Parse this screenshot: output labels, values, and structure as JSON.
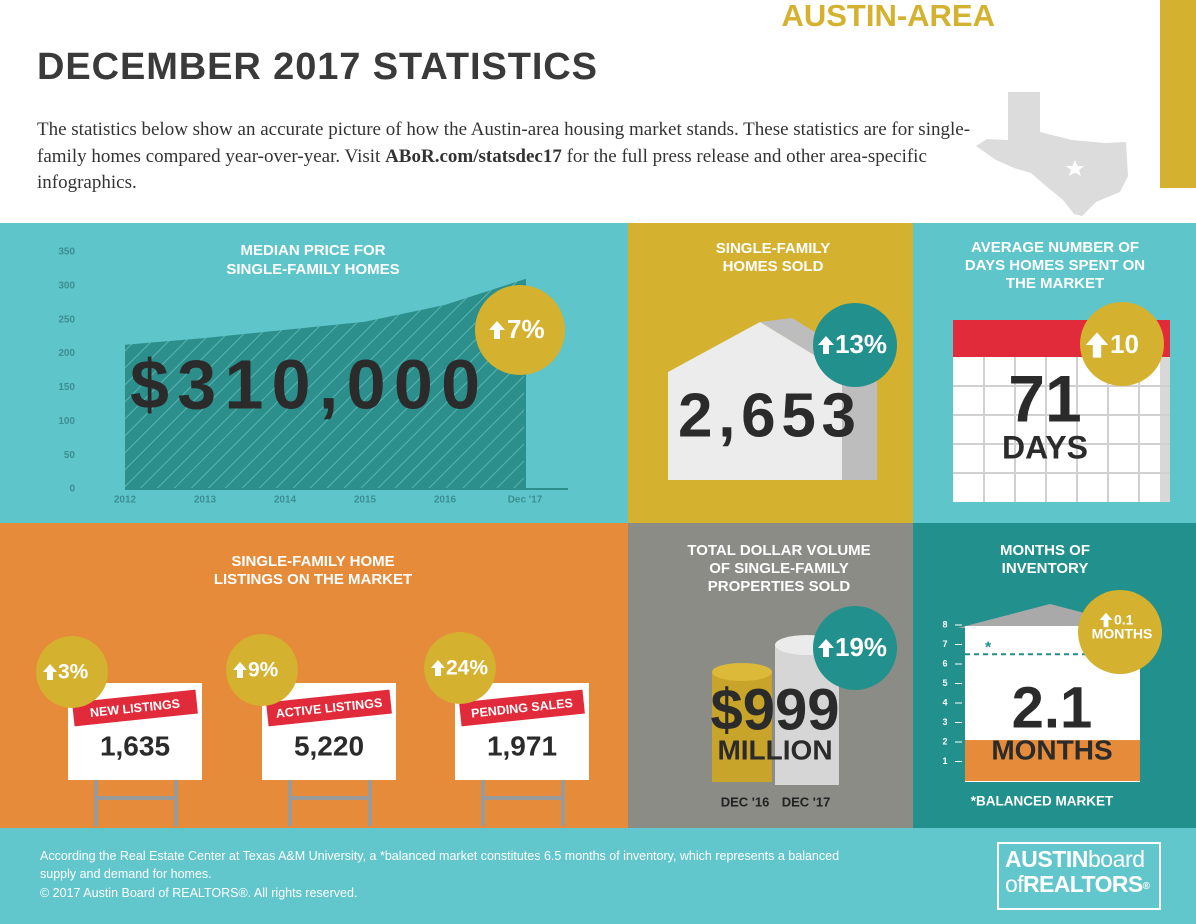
{
  "header": {
    "region": "AUSTIN-AREA",
    "title": "DECEMBER 2017 STATISTICS",
    "description": [
      "The statistics below show an accurate picture of how the Austin-area housing market stands. These statistics are for single-family homes compared year-over-year. Visit ",
      "ABoR.com/statsdec17",
      " for the full press release and other area-specific infographics."
    ]
  },
  "median_price": {
    "title": [
      "MEDIAN PRICE FOR",
      "SINGLE-FAMILY HOMES"
    ],
    "value": "$310,000",
    "change": "7%",
    "chart": {
      "type": "area",
      "categories": [
        "2012",
        "2013",
        "2014",
        "2015",
        "2016",
        "Dec '17"
      ],
      "values": [
        213,
        223,
        235,
        247,
        272,
        310
      ],
      "ylim": [
        0,
        350
      ],
      "yticks": [
        0,
        50,
        100,
        150,
        200,
        250,
        300,
        350
      ]
    }
  },
  "homes_sold": {
    "title": [
      "SINGLE-FAMILY",
      "HOMES SOLD"
    ],
    "value": "2,653",
    "change": "13%"
  },
  "days_on_market": {
    "title": [
      "AVERAGE NUMBER OF",
      "DAYS HOMES SPENT ON",
      "THE MARKET"
    ],
    "value": "71",
    "unit": "DAYS",
    "change": "10"
  },
  "listings": {
    "title": [
      "SINGLE-FAMILY HOME",
      "LISTINGS ON THE MARKET"
    ],
    "items": [
      {
        "label": "NEW LISTINGS",
        "value": "1,635",
        "change": "3%"
      },
      {
        "label": "ACTIVE LISTINGS",
        "value": "5,220",
        "change": "9%"
      },
      {
        "label": "PENDING SALES",
        "value": "1,971",
        "change": "24%"
      }
    ]
  },
  "dollar_volume": {
    "title": [
      "TOTAL DOLLAR VOLUME",
      "OF SINGLE-FAMILY",
      "PROPERTIES SOLD"
    ],
    "value": "$999",
    "unit": "MILLION",
    "change": "19%",
    "bars": [
      "DEC '16",
      "DEC '17"
    ]
  },
  "inventory": {
    "title": [
      "MONTHS OF",
      "INVENTORY"
    ],
    "change": "0.1",
    "change_unit": "MONTHS",
    "unit": "MONTHS",
    "marker": "*",
    "note": "*BALANCED MARKET",
    "chart": {
      "value": 2.1,
      "balanced": 6.5,
      "ylim": [
        0,
        8
      ],
      "yticks": [
        1,
        2,
        3,
        4,
        5,
        6,
        7,
        8
      ]
    }
  },
  "footer": {
    "note": "According the Real Estate Center at Texas A&M University, a *balanced market constitutes 6.5 months of inventory, which represents a balanced supply and demand for homes.",
    "copyright": "© 2017  Austin Board of REALTORS®. All rights reserved."
  },
  "logo": [
    "AUSTIN",
    "board",
    "of",
    "REALTORS",
    "®"
  ]
}
